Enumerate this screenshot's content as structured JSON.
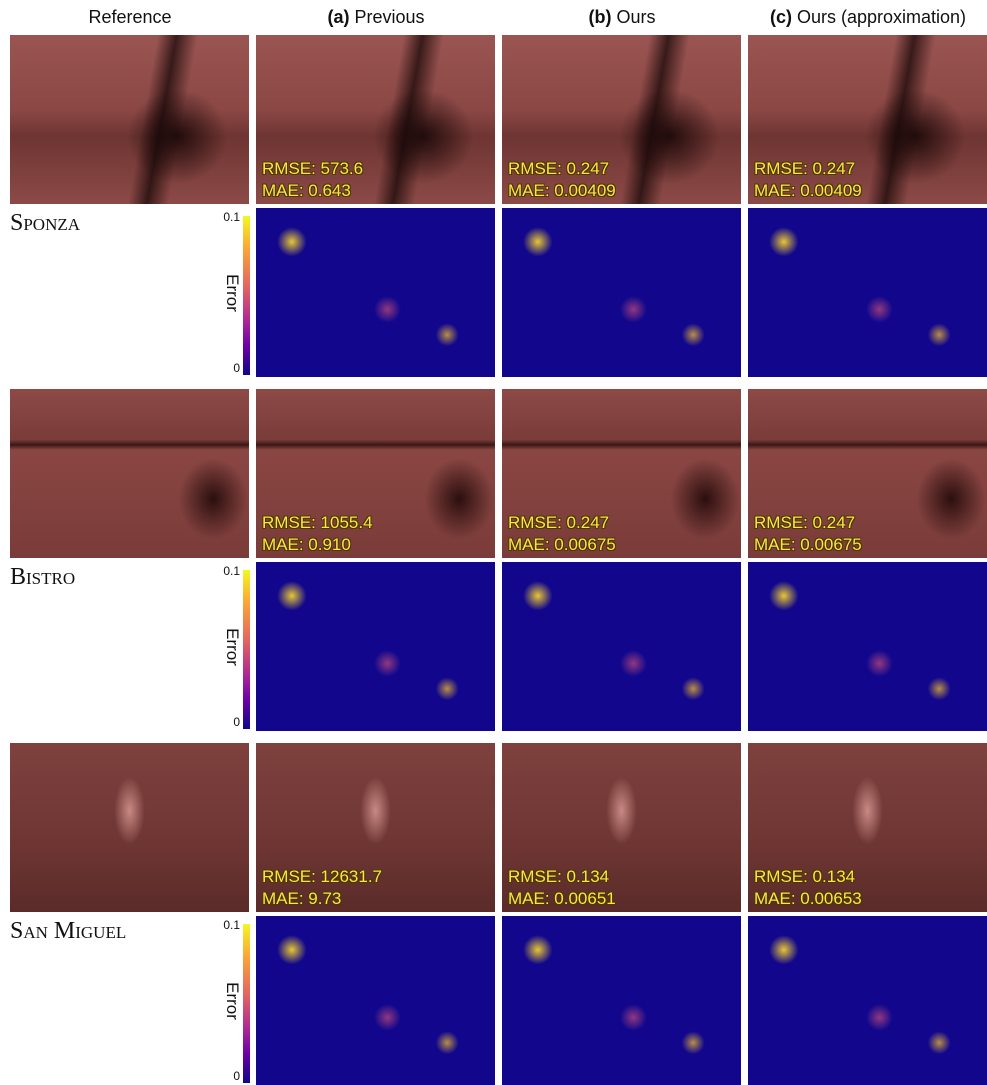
{
  "columns": [
    {
      "label": "Reference"
    },
    {
      "tag": "(a)",
      "label": "Previous"
    },
    {
      "tag": "(b)",
      "label": "Ours"
    },
    {
      "tag": "(c)",
      "label": "Ours (approximation)"
    }
  ],
  "colorbar": {
    "max": 0.1,
    "min": 0,
    "label": "Error"
  },
  "scenes": [
    {
      "name": "Sponza",
      "metrics": [
        {
          "rmse": "RMSE: 573.6",
          "mae": "MAE: 0.643"
        },
        {
          "rmse": "RMSE: 0.247",
          "mae": "MAE: 0.00409"
        },
        {
          "rmse": "RMSE: 0.247",
          "mae": "MAE: 0.00409"
        }
      ]
    },
    {
      "name": "Bistro",
      "metrics": [
        {
          "rmse": "RMSE: 1055.4",
          "mae": "MAE: 0.910"
        },
        {
          "rmse": "RMSE: 0.247",
          "mae": "MAE: 0.00675"
        },
        {
          "rmse": "RMSE: 0.247",
          "mae": "MAE: 0.00675"
        }
      ]
    },
    {
      "name": "San Miguel",
      "metrics": [
        {
          "rmse": "RMSE: 12631.7",
          "mae": "MAE: 9.73"
        },
        {
          "rmse": "RMSE: 0.134",
          "mae": "MAE: 0.00651"
        },
        {
          "rmse": "RMSE: 0.134",
          "mae": "MAE: 0.00653"
        }
      ]
    }
  ]
}
